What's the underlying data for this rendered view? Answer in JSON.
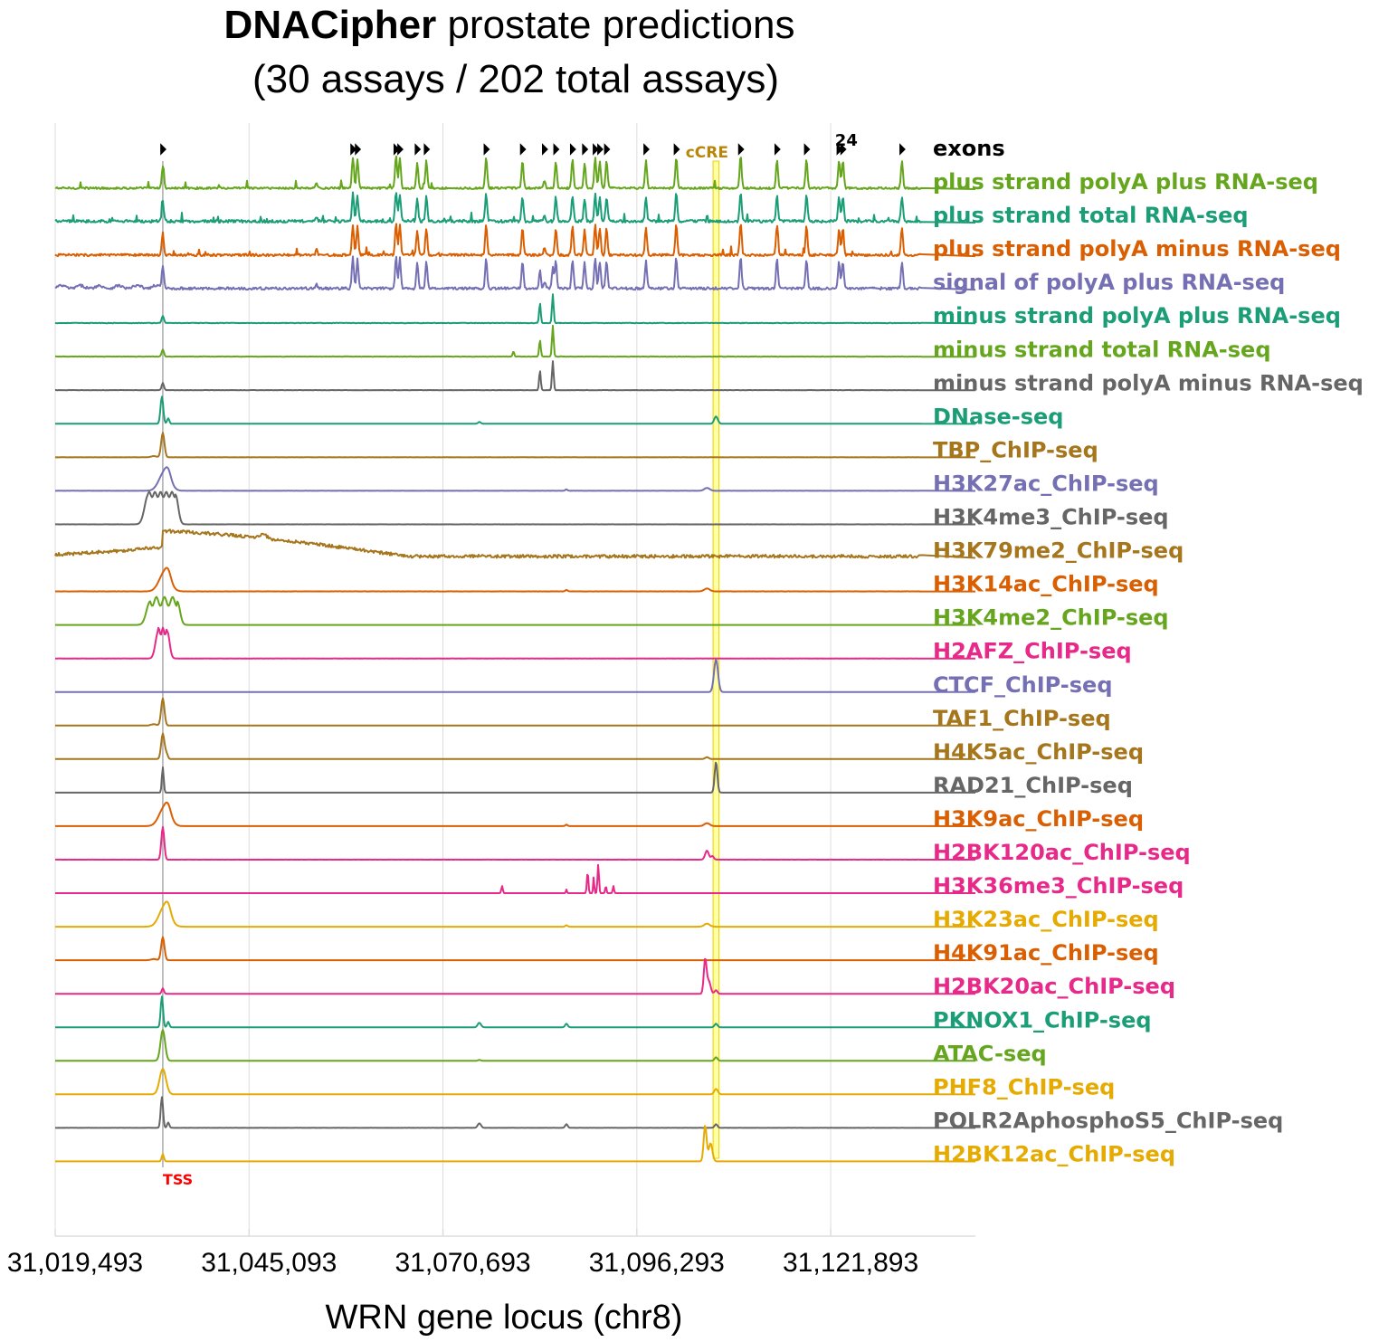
{
  "chart_data": {
    "type": "line",
    "title_bold": "DNACipher",
    "title_rest": " prostate predictions",
    "subtitle": "(30 assays / 202 total assays)",
    "xlabel": "WRN gene locus (chr8)",
    "ylabel": "",
    "xlim": [
      31019493,
      31141000
    ],
    "xticks": [
      31019493,
      31045093,
      31070693,
      31096293,
      31121893
    ],
    "xtick_labels": [
      "31,019,493",
      "31,045,093",
      "31,070,693",
      "31,096,293",
      "31,121,893"
    ],
    "grid": true,
    "tss": {
      "position": 31033700,
      "label": "TSS",
      "color": "#ff0000"
    },
    "cre": {
      "start": 31106600,
      "end": 31106900,
      "label": "cCRE",
      "color": "#b8860b",
      "fill": "#ffff66"
    },
    "exons": {
      "label": "exons",
      "count_label": "24",
      "positions": [
        31033700,
        31058800,
        31059400,
        31064500,
        31065000,
        31067300,
        31068500,
        31076400,
        31081200,
        31084100,
        31085600,
        31087800,
        31089400,
        31090800,
        31091400,
        31092300,
        31097500,
        31101500,
        31110000,
        31114800,
        31118700,
        31123000,
        31123500,
        31131300
      ]
    },
    "series": [
      {
        "name": "plus strand polyA plus RNA-seq",
        "color": "#66a61e",
        "kind": "rna_plus",
        "scale": 1.0,
        "noise": 1.0
      },
      {
        "name": "plus strand total RNA-seq",
        "color": "#1b9e77",
        "kind": "rna_plus",
        "scale": 0.9,
        "noise": 1.4
      },
      {
        "name": "plus strand polyA minus RNA-seq",
        "color": "#d95f02",
        "kind": "rna_plus",
        "scale": 1.0,
        "noise": 1.2
      },
      {
        "name": "signal of polyA plus RNA-seq",
        "color": "#7570b3",
        "kind": "rna_signal",
        "scale": 1.0,
        "noise": 1.3
      },
      {
        "name": "minus strand polyA plus RNA-seq",
        "color": "#1b9e77",
        "kind": "rna_minus",
        "scale": 1.0,
        "noise": 0.6
      },
      {
        "name": "minus strand total RNA-seq",
        "color": "#66a61e",
        "kind": "rna_minus2",
        "scale": 1.0,
        "noise": 0.5
      },
      {
        "name": "minus strand polyA minus RNA-seq",
        "color": "#666666",
        "kind": "rna_minus",
        "scale": 1.0,
        "noise": 0.4
      },
      {
        "name": "DNase-seq",
        "color": "#1b9e77",
        "kind": "dnase",
        "scale": 1.0,
        "noise": 0.2
      },
      {
        "name": "TBP_ChIP-seq",
        "color": "#a6761d",
        "kind": "sharp",
        "scale": 0.9,
        "noise": 0.1
      },
      {
        "name": "H3K27ac_ChIP-seq",
        "color": "#7570b3",
        "kind": "broad_promoter",
        "scale": 0.8,
        "noise": 0.2
      },
      {
        "name": "H3K4me3_ChIP-seq",
        "color": "#666666",
        "kind": "h3k4me3",
        "scale": 1.0,
        "noise": 0.1
      },
      {
        "name": "H3K79me2_ChIP-seq",
        "color": "#a6761d",
        "kind": "h3k79me2",
        "scale": 1.0,
        "noise": 1.6
      },
      {
        "name": "H3K14ac_ChIP-seq",
        "color": "#d95f02",
        "kind": "broad_promoter",
        "scale": 0.8,
        "noise": 0.2
      },
      {
        "name": "H3K4me2_ChIP-seq",
        "color": "#66a61e",
        "kind": "h3k4me2",
        "scale": 1.0,
        "noise": 0.1
      },
      {
        "name": "H2AFZ_ChIP-seq",
        "color": "#e7298a",
        "kind": "h2afz",
        "scale": 1.0,
        "noise": 0.1
      },
      {
        "name": "CTCF_ChIP-seq",
        "color": "#7570b3",
        "kind": "ctcf",
        "scale": 1.0,
        "noise": 0.05
      },
      {
        "name": "TAF1_ChIP-seq",
        "color": "#a6761d",
        "kind": "sharp",
        "scale": 1.0,
        "noise": 0.05
      },
      {
        "name": "H4K5ac_ChIP-seq",
        "color": "#a6761d",
        "kind": "sharp_small",
        "scale": 1.0,
        "noise": 0.1
      },
      {
        "name": "RAD21_ChIP-seq",
        "color": "#666666",
        "kind": "rad21",
        "scale": 1.0,
        "noise": 0.05
      },
      {
        "name": "H3K9ac_ChIP-seq",
        "color": "#d95f02",
        "kind": "broad_promoter",
        "scale": 0.8,
        "noise": 0.1
      },
      {
        "name": "H2BK120ac_ChIP-seq",
        "color": "#e7298a",
        "kind": "h2bk120",
        "scale": 1.0,
        "noise": 0.1
      },
      {
        "name": "H3K36me3_ChIP-seq",
        "color": "#e7298a",
        "kind": "h3k36",
        "scale": 1.0,
        "noise": 0.05
      },
      {
        "name": "H3K23ac_ChIP-seq",
        "color": "#e6ab02",
        "kind": "broad_promoter",
        "scale": 0.85,
        "noise": 0.05
      },
      {
        "name": "H4K91ac_ChIP-seq",
        "color": "#d95f02",
        "kind": "sharp",
        "scale": 0.85,
        "noise": 0.05
      },
      {
        "name": "H2BK20ac_ChIP-seq",
        "color": "#e7298a",
        "kind": "h2bk20",
        "scale": 1.0,
        "noise": 0.05
      },
      {
        "name": "PKNOX1_ChIP-seq",
        "color": "#1b9e77",
        "kind": "pknox",
        "scale": 1.0,
        "noise": 0.1
      },
      {
        "name": "ATAC-seq",
        "color": "#66a61e",
        "kind": "atac",
        "scale": 1.0,
        "noise": 0.1
      },
      {
        "name": "PHF8_ChIP-seq",
        "color": "#e6ab02",
        "kind": "phf8",
        "scale": 1.0,
        "noise": 0.1
      },
      {
        "name": "POLR2AphosphoS5_ChIP-seq",
        "color": "#666666",
        "kind": "pknox",
        "scale": 1.0,
        "noise": 0.1
      },
      {
        "name": "H2BK12ac_ChIP-seq",
        "color": "#e6ab02",
        "kind": "h2bk12",
        "scale": 1.0,
        "noise": 0.05
      }
    ]
  }
}
